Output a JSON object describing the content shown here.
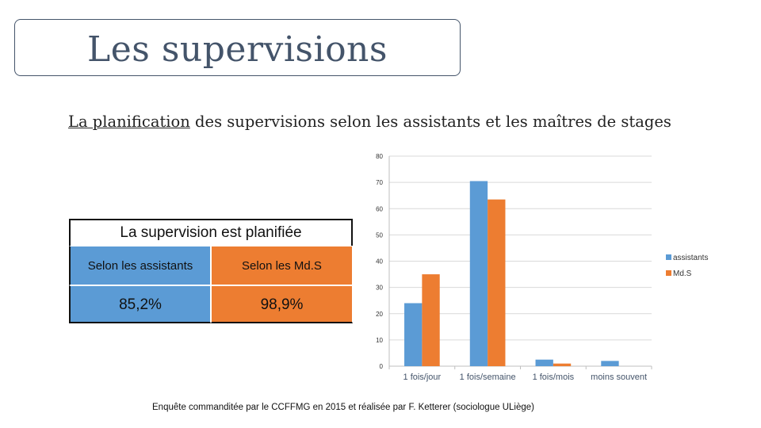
{
  "slide": {
    "title": "Les supervisions",
    "subtitle_underlined": "La planification",
    "subtitle_rest": " des supervisions selon les assistants et les maîtres de stages",
    "footer": "Enquête commanditée par le CCFFMG en 2015 et réalisée par F. Ketterer (sociologue ULiège)"
  },
  "table": {
    "header": "La supervision est planifiée",
    "columns": [
      "Selon les assistants",
      "Selon les Md.S"
    ],
    "values": [
      "85,2%",
      "98,9%"
    ],
    "colors": [
      "#5b9bd5",
      "#ed7d31"
    ]
  },
  "chart_data": {
    "type": "bar",
    "title": "",
    "xlabel": "",
    "ylabel": "",
    "categories": [
      "1 fois/jour",
      "1 fois/semaine",
      "1 fois/mois",
      "moins souvent"
    ],
    "series": [
      {
        "name": "assistants",
        "values": [
          24,
          70.5,
          2.5,
          2
        ],
        "color": "#5b9bd5"
      },
      {
        "name": "Md.S",
        "values": [
          35,
          63.5,
          1,
          0
        ],
        "color": "#ed7d31"
      }
    ],
    "ylim": [
      0,
      80
    ],
    "yticks": [
      0,
      10,
      20,
      30,
      40,
      50,
      60,
      70,
      80
    ],
    "grid": true,
    "legend": "right"
  }
}
